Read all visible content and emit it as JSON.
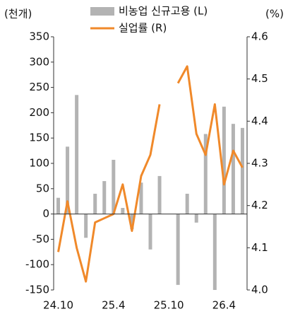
{
  "chart_data": {
    "type": "bar_line",
    "y_label": "(천개)",
    "y2_label": "(%)",
    "categories": [
      "24.10",
      null,
      null,
      null,
      null,
      null,
      "25.4",
      null,
      null,
      null,
      null,
      null,
      "25.10",
      null,
      null,
      null,
      null,
      null,
      "26.4",
      null,
      null
    ],
    "series": [
      {
        "name": "비농업 신규고용 (L)",
        "type": "bar",
        "color": "#b3b3b3",
        "values": [
          32,
          133,
          235,
          -47,
          40,
          65,
          107,
          12,
          -30,
          62,
          -70,
          75,
          null,
          -140,
          40,
          -17,
          158,
          -150,
          212,
          178,
          170
        ]
      },
      {
        "name": "실업률 (R)",
        "type": "line",
        "axis": "y2",
        "color": "#f0892a",
        "values": [
          4.09,
          4.21,
          4.1,
          4.02,
          4.16,
          4.17,
          4.18,
          4.25,
          4.14,
          4.27,
          4.32,
          4.44,
          null,
          4.49,
          4.53,
          4.37,
          4.32,
          4.44,
          4.25,
          4.33,
          4.29
        ]
      }
    ],
    "ylim": [
      -150,
      350
    ],
    "yticks": [
      -150,
      -100,
      -50,
      0,
      50,
      100,
      150,
      200,
      250,
      300,
      350
    ],
    "y2lim": [
      4.0,
      4.6
    ],
    "y2ticks": [
      {
        "value": 4.0,
        "label": "4.0"
      },
      4.1,
      4.2,
      4.3,
      4.4,
      4.5,
      {
        "value": 4.6,
        "label": "4.6"
      }
    ]
  }
}
